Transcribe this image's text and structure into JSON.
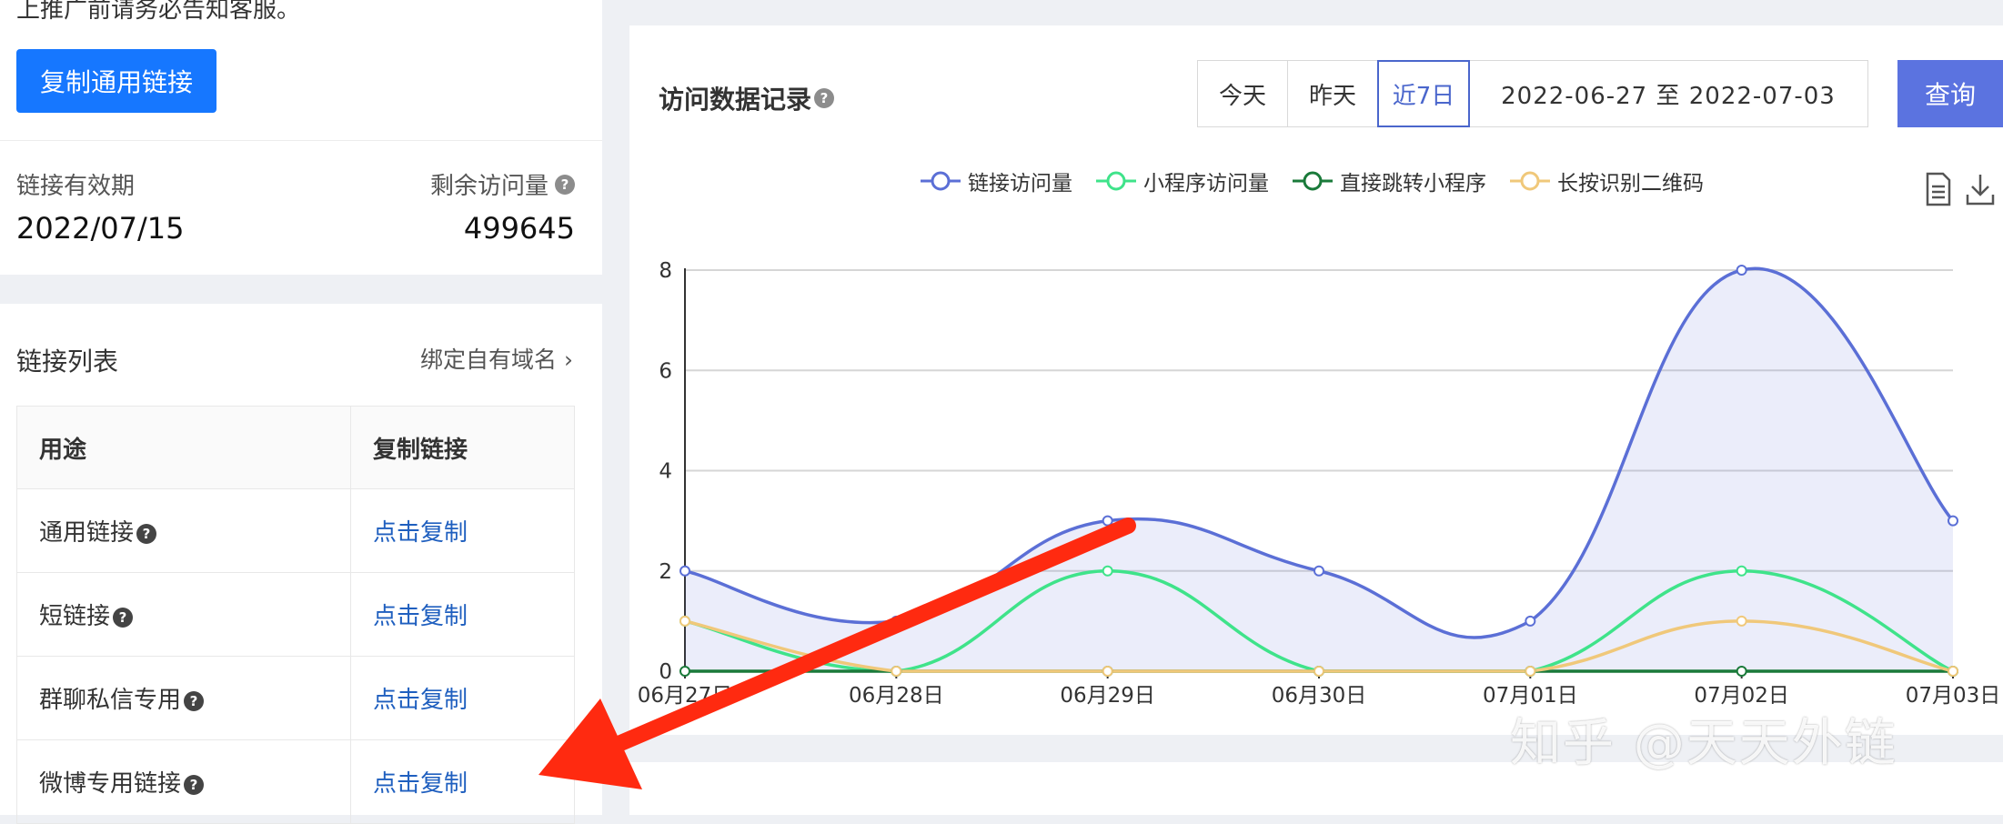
{
  "notice": "上推广前请务必告知客服。",
  "copy_general_button": "复制通用链接",
  "validity": {
    "label": "链接有效期",
    "value": "2022/07/15"
  },
  "remaining": {
    "label": "剩余访问量",
    "value": "499645"
  },
  "link_list": {
    "title": "链接列表",
    "bind_domain": "绑定自有域名 ›",
    "columns": [
      "用途",
      "复制链接"
    ],
    "rows": [
      {
        "name": "通用链接",
        "action": "点击复制"
      },
      {
        "name": "短链接",
        "action": "点击复制"
      },
      {
        "name": "群聊私信专用",
        "action": "点击复制"
      },
      {
        "name": "微博专用链接",
        "action": "点击复制"
      }
    ]
  },
  "visits": {
    "title": "访问数据记录",
    "tabs": [
      "今天",
      "昨天",
      "近7日"
    ],
    "active_tab": "近7日",
    "date_range": "2022-06-27 至 2022-07-03",
    "query_button": "查询"
  },
  "watermark": "知乎 @天天外链",
  "colors": {
    "primary_button": "#1677ff",
    "series_link": "#5b6fd6",
    "series_mini": "#3fe38a",
    "series_direct": "#1a7a3a",
    "series_qr": "#f0c87a",
    "arrow": "#ff2a10"
  },
  "chart_data": {
    "type": "area",
    "categories": [
      "06月27日",
      "06月28日",
      "06月29日",
      "06月30日",
      "07月01日",
      "07月02日",
      "07月03日"
    ],
    "ylim": [
      0,
      8
    ],
    "yticks": [
      0,
      2,
      4,
      6,
      8
    ],
    "grid": true,
    "legend_position": "top-center",
    "series": [
      {
        "name": "链接访问量",
        "values": [
          2,
          1,
          3,
          2,
          1,
          8,
          3
        ]
      },
      {
        "name": "小程序访问量",
        "values": [
          1,
          0,
          2,
          0,
          0,
          2,
          0
        ]
      },
      {
        "name": "直接跳转小程序",
        "values": [
          0,
          0,
          0,
          0,
          0,
          0,
          0
        ]
      },
      {
        "name": "长按识别二维码",
        "values": [
          1,
          0,
          0,
          0,
          0,
          1,
          0
        ]
      }
    ]
  }
}
